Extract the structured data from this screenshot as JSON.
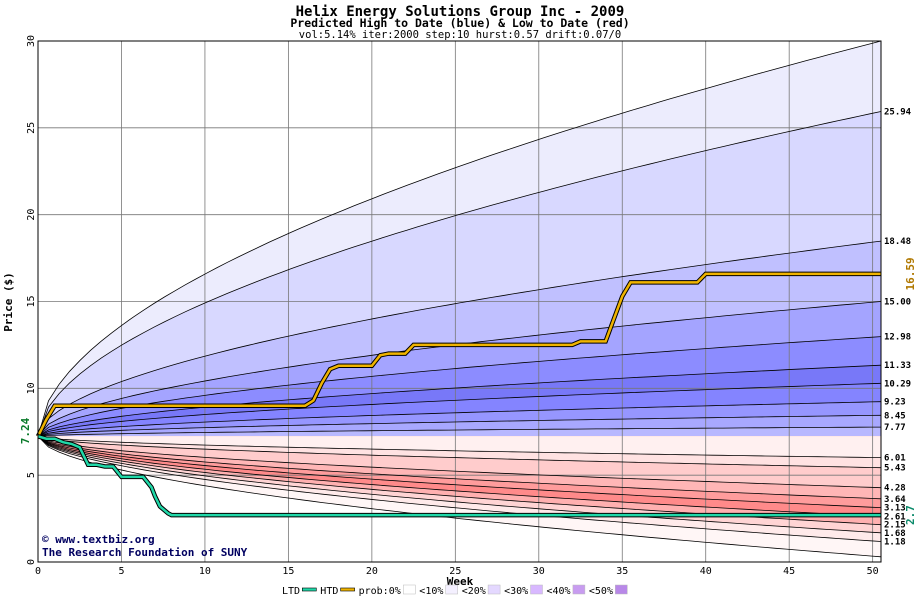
{
  "chart_data": {
    "type": "area",
    "title": "Helix Energy Solutions Group Inc - 2009",
    "subtitle": "Predicted High to Date (blue) &  Low to Date (red)",
    "params": "vol:5.14% iter:2000 step:10 hurst:0.57 drift:0.07/0",
    "xlabel": "Week",
    "ylabel": "Price ($)",
    "xlim": [
      0,
      50.5
    ],
    "ylim": [
      0,
      30
    ],
    "x_ticks": [
      0,
      5,
      10,
      15,
      20,
      25,
      30,
      35,
      40,
      45,
      50
    ],
    "y_ticks": [
      0,
      5,
      10,
      15,
      20,
      25,
      30
    ],
    "grid": true,
    "start_price": 7.24,
    "start_label": "7.24",
    "upper_bands": [
      {
        "end": 7.77,
        "label": "7.77",
        "fill": "#b8b8ff"
      },
      {
        "end": 8.45,
        "label": "8.45",
        "fill": "#a8a8ff"
      },
      {
        "end": 9.23,
        "label": "9.23",
        "fill": "#9696ff"
      },
      {
        "end": 10.29,
        "label": "10.29",
        "fill": "#8484ff"
      },
      {
        "end": 11.33,
        "label": "11.33",
        "fill": "#7878f8"
      },
      {
        "end": 12.98,
        "label": "12.98",
        "fill": "#8c8cff"
      },
      {
        "end": 15.0,
        "label": "15.00",
        "fill": "#a4a4ff"
      },
      {
        "end": 18.48,
        "label": "18.48",
        "fill": "#c0c0ff"
      },
      {
        "end": 25.94,
        "label": "25.94",
        "fill": "#d8d8ff"
      },
      {
        "end": 30.0,
        "label": "",
        "fill": "#ececfd"
      }
    ],
    "lower_bands": [
      {
        "end": 6.01,
        "label": "6.01",
        "fill": "#fff0f0"
      },
      {
        "end": 5.43,
        "label": "5.43",
        "fill": "#ffe2e2"
      },
      {
        "end": 4.28,
        "label": "4.28",
        "fill": "#ffcccc"
      },
      {
        "end": 3.64,
        "label": "3.64",
        "fill": "#ffb6b6"
      },
      {
        "end": 3.13,
        "label": "3.13",
        "fill": "#ff9c9c"
      },
      {
        "end": 2.61,
        "label": "2.61",
        "fill": "#ff8a8a"
      },
      {
        "end": 2.15,
        "label": "2.15",
        "fill": "#ffb0b0"
      },
      {
        "end": 1.68,
        "label": "1.68",
        "fill": "#ffd4d4"
      },
      {
        "end": 1.18,
        "label": "1.18",
        "fill": "#ffeaea"
      },
      {
        "end": 0.3,
        "label": "",
        "fill": "#fff6f6"
      }
    ],
    "series": [
      {
        "name": "HTD",
        "color": "#f0b400",
        "end_label": "16.59",
        "x": [
          0,
          0.5,
          1,
          1.5,
          2,
          3,
          4,
          5,
          6,
          7,
          8,
          9,
          10,
          11,
          12,
          13,
          14,
          15,
          16,
          16.5,
          17,
          17.5,
          18,
          19,
          20,
          20.5,
          21,
          22,
          22.5,
          23,
          24,
          25,
          26,
          27,
          28,
          29,
          30,
          31,
          32,
          32.5,
          33,
          34,
          34.5,
          35,
          35.5,
          36,
          37,
          38,
          39,
          39.5,
          40,
          41,
          42,
          43,
          44,
          45,
          46,
          47,
          48,
          49,
          50,
          50.5
        ],
        "y": [
          7.24,
          8.2,
          9.0,
          9.0,
          9.0,
          9.0,
          9.0,
          9.0,
          9.0,
          9.0,
          9.0,
          9.0,
          9.0,
          9.0,
          9.0,
          9.0,
          9.0,
          9.0,
          9.0,
          9.3,
          10.3,
          11.1,
          11.3,
          11.3,
          11.3,
          11.9,
          12.0,
          12.0,
          12.5,
          12.5,
          12.5,
          12.5,
          12.5,
          12.5,
          12.5,
          12.5,
          12.5,
          12.5,
          12.5,
          12.7,
          12.7,
          12.7,
          14.0,
          15.3,
          16.1,
          16.1,
          16.1,
          16.1,
          16.1,
          16.1,
          16.59,
          16.59,
          16.59,
          16.59,
          16.59,
          16.59,
          16.59,
          16.59,
          16.59,
          16.59,
          16.59,
          16.59
        ]
      },
      {
        "name": "LTD",
        "color": "#20d8a8",
        "end_label": "2.7",
        "x": [
          0,
          0.5,
          1,
          1.5,
          2,
          2.5,
          3,
          3.5,
          4,
          4.5,
          5,
          5.5,
          6,
          6.3,
          6.8,
          7,
          7.3,
          7.8,
          8,
          10,
          15,
          20,
          25,
          30,
          35,
          40,
          45,
          50,
          50.5
        ],
        "y": [
          7.24,
          7.1,
          7.1,
          6.9,
          6.8,
          6.6,
          5.6,
          5.6,
          5.5,
          5.5,
          4.9,
          4.9,
          4.9,
          4.9,
          4.3,
          3.8,
          3.2,
          2.8,
          2.7,
          2.7,
          2.7,
          2.7,
          2.7,
          2.7,
          2.7,
          2.7,
          2.7,
          2.7,
          2.7
        ]
      }
    ],
    "legend": {
      "placement": "bottom",
      "items": [
        "LTD",
        "HTD",
        "prob:0%",
        "<10%",
        "<20%",
        "<30%",
        "<40%",
        "<50%"
      ],
      "colors": [
        "#20d8a8",
        "#f0b400",
        "#ffffff",
        "#f4f0ff",
        "#e4d8ff",
        "#d8b8ff",
        "#c89cf0",
        "#b888e8"
      ]
    },
    "credit": [
      "© www.textbiz.org",
      "The Research Foundation of SUNY"
    ]
  }
}
